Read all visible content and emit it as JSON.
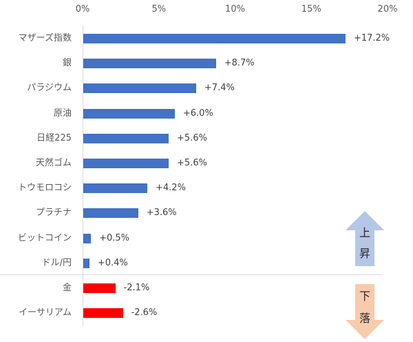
{
  "chart_data": {
    "type": "bar",
    "orientation": "horizontal",
    "title": "",
    "xlabel": "",
    "ylabel": "",
    "xlim": [
      0,
      20
    ],
    "x_ticks": [
      "0%",
      "5%",
      "10%",
      "15%",
      "20%"
    ],
    "grid": false,
    "categories": [
      "マザーズ指数",
      "銀",
      "パラジウム",
      "原油",
      "日経225",
      "天然ゴム",
      "トウモロコシ",
      "プラチナ",
      "ビットコイン",
      "ドル/円",
      "金",
      "イーサリアム"
    ],
    "values": [
      17.2,
      8.7,
      7.4,
      6.0,
      5.6,
      5.6,
      4.2,
      3.6,
      0.5,
      0.4,
      -2.1,
      -2.6
    ],
    "value_labels": [
      "+17.2%",
      "+8.7%",
      "+7.4%",
      "+6.0%",
      "+5.6%",
      "+5.6%",
      "+4.2%",
      "+3.6%",
      "+0.5%",
      "+0.4%",
      "-2.1%",
      "-2.6%"
    ],
    "note": "Negative values drawn with bar length equal to absolute value, in red",
    "colors": {
      "positive": "#4472c4",
      "negative": "#ff0000"
    },
    "annotations": [
      {
        "text": "上昇",
        "shape": "up-arrow",
        "color": "#b4c7e7"
      },
      {
        "text": "下落",
        "shape": "down-arrow",
        "color": "#f8cbad"
      }
    ]
  },
  "axis": {
    "ticks": [
      "0%",
      "5%",
      "10%",
      "15%",
      "20%"
    ]
  },
  "rows": [
    {
      "label": "マザーズ指数",
      "value": 17.2,
      "text": "+17.2%"
    },
    {
      "label": "銀",
      "value": 8.7,
      "text": "+8.7%"
    },
    {
      "label": "パラジウム",
      "value": 7.4,
      "text": "+7.4%"
    },
    {
      "label": "原油",
      "value": 6.0,
      "text": "+6.0%"
    },
    {
      "label": "日経225",
      "value": 5.6,
      "text": "+5.6%"
    },
    {
      "label": "天然ゴム",
      "value": 5.6,
      "text": "+5.6%"
    },
    {
      "label": "トウモロコシ",
      "value": 4.2,
      "text": "+4.2%"
    },
    {
      "label": "プラチナ",
      "value": 3.6,
      "text": "+3.6%"
    },
    {
      "label": "ビットコイン",
      "value": 0.5,
      "text": "+0.5%"
    },
    {
      "label": "ドル/円",
      "value": 0.4,
      "text": "+0.4%"
    },
    {
      "label": "金",
      "value": -2.1,
      "text": "-2.1%"
    },
    {
      "label": "イーサリアム",
      "value": -2.6,
      "text": "-2.6%"
    }
  ],
  "arrows": {
    "up": {
      "line1": "上",
      "line2": "昇"
    },
    "down": {
      "line1": "下",
      "line2": "落"
    }
  }
}
